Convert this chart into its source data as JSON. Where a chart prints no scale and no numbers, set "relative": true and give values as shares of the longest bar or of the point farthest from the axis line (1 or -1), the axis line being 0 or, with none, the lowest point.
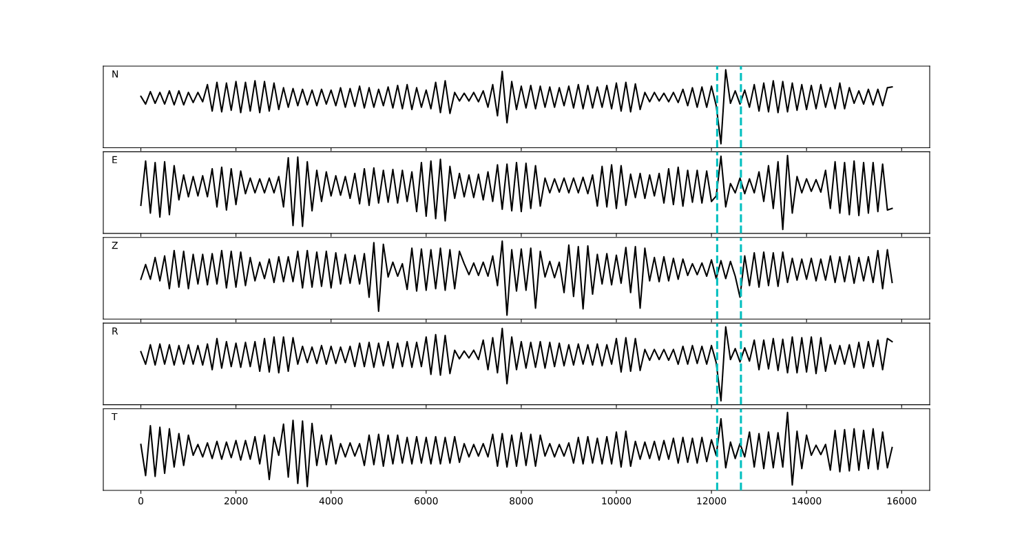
{
  "chart_data": [
    {
      "type": "line",
      "title": "N",
      "relative": true,
      "color": "#000000",
      "xlim": [
        -790,
        16590
      ],
      "xticks": [
        0,
        2000,
        4000,
        6000,
        8000,
        10000,
        12000,
        14000,
        16000
      ],
      "tick_labels": false,
      "ref_lines": [
        {
          "axis": "x",
          "value": 12120,
          "color": "#00bfbf",
          "line_style": "dashed"
        },
        {
          "axis": "x",
          "value": 12620,
          "color": "#00bfbf",
          "line_style": "dashed"
        }
      ],
      "x": [
        0,
        100,
        200,
        300,
        400,
        500,
        600,
        700,
        800,
        900,
        1000,
        1100,
        1200,
        1300,
        1400,
        1500,
        1600,
        1700,
        1800,
        1900,
        2000,
        2100,
        2200,
        2300,
        2400,
        2500,
        2600,
        2700,
        2800,
        2900,
        3000,
        3100,
        3200,
        3300,
        3400,
        3500,
        3600,
        3700,
        3800,
        3900,
        4000,
        4100,
        4200,
        4300,
        4400,
        4500,
        4600,
        4700,
        4800,
        4900,
        5000,
        5100,
        5200,
        5300,
        5400,
        5500,
        5600,
        5700,
        5800,
        5900,
        6000,
        6100,
        6200,
        6300,
        6400,
        6500,
        6600,
        6700,
        6800,
        6900,
        7000,
        7100,
        7200,
        7300,
        7400,
        7500,
        7600,
        7700,
        7800,
        7900,
        8000,
        8100,
        8200,
        8300,
        8400,
        8500,
        8600,
        8700,
        8800,
        8900,
        9000,
        9100,
        9200,
        9300,
        9400,
        9500,
        9600,
        9700,
        9800,
        9900,
        10000,
        10100,
        10200,
        10300,
        10400,
        10500,
        10600,
        10700,
        10800,
        10900,
        11000,
        11100,
        11200,
        11300,
        11400,
        11500,
        11600,
        11700,
        11800,
        11900,
        12000,
        12100,
        12200,
        12300,
        12400,
        12500,
        12600,
        12700,
        12800,
        12900,
        13000,
        13100,
        13200,
        13300,
        13400,
        13500,
        13600,
        13700,
        13800,
        13900,
        14000,
        14100,
        14200,
        14300,
        14400,
        14500,
        14600,
        14700,
        14800,
        14900,
        15000,
        15100,
        15200,
        15300,
        15400,
        15500,
        15600,
        15700,
        15800
      ],
      "values": [
        0.66,
        0.56,
        0.72,
        0.57,
        0.71,
        0.56,
        0.73,
        0.55,
        0.73,
        0.55,
        0.71,
        0.58,
        0.71,
        0.59,
        0.81,
        0.47,
        0.84,
        0.46,
        0.83,
        0.48,
        0.85,
        0.45,
        0.84,
        0.47,
        0.86,
        0.45,
        0.85,
        0.47,
        0.83,
        0.49,
        0.77,
        0.52,
        0.76,
        0.54,
        0.75,
        0.55,
        0.74,
        0.54,
        0.75,
        0.56,
        0.74,
        0.54,
        0.77,
        0.52,
        0.76,
        0.53,
        0.79,
        0.51,
        0.77,
        0.52,
        0.75,
        0.54,
        0.78,
        0.51,
        0.8,
        0.5,
        0.81,
        0.49,
        0.77,
        0.52,
        0.74,
        0.5,
        0.84,
        0.45,
        0.86,
        0.44,
        0.71,
        0.6,
        0.7,
        0.6,
        0.71,
        0.59,
        0.73,
        0.52,
        0.81,
        0.41,
        0.98,
        0.32,
        0.85,
        0.49,
        0.79,
        0.51,
        0.8,
        0.5,
        0.79,
        0.52,
        0.78,
        0.52,
        0.77,
        0.54,
        0.79,
        0.51,
        0.81,
        0.5,
        0.8,
        0.51,
        0.78,
        0.52,
        0.8,
        0.5,
        0.83,
        0.47,
        0.84,
        0.46,
        0.82,
        0.49,
        0.71,
        0.59,
        0.71,
        0.6,
        0.7,
        0.59,
        0.71,
        0.58,
        0.75,
        0.54,
        0.77,
        0.52,
        0.78,
        0.52,
        0.79,
        0.54,
        0.05,
        1.0,
        0.57,
        0.73,
        0.56,
        0.74,
        0.52,
        0.81,
        0.47,
        0.83,
        0.46,
        0.86,
        0.45,
        0.85,
        0.46,
        0.83,
        0.48,
        0.81,
        0.49,
        0.8,
        0.5,
        0.81,
        0.52,
        0.77,
        0.5,
        0.83,
        0.5,
        0.77,
        0.57,
        0.73,
        0.56,
        0.75,
        0.55,
        0.75,
        0.54,
        0.77,
        0.78
      ]
    },
    {
      "type": "line",
      "title": "E",
      "relative": true,
      "color": "#000000",
      "xlim": [
        -790,
        16590
      ],
      "xticks": [
        0,
        2000,
        4000,
        6000,
        8000,
        10000,
        12000,
        14000,
        16000
      ],
      "tick_labels": false,
      "ref_lines": [
        {
          "axis": "x",
          "value": 12120,
          "color": "#00bfbf",
          "line_style": "dashed"
        },
        {
          "axis": "x",
          "value": 12620,
          "color": "#00bfbf",
          "line_style": "dashed"
        }
      ],
      "x": [
        0,
        100,
        200,
        300,
        400,
        500,
        600,
        700,
        800,
        900,
        1000,
        1100,
        1200,
        1300,
        1400,
        1500,
        1600,
        1700,
        1800,
        1900,
        2000,
        2100,
        2200,
        2300,
        2400,
        2500,
        2600,
        2700,
        2800,
        2900,
        3000,
        3100,
        3200,
        3300,
        3400,
        3500,
        3600,
        3700,
        3800,
        3900,
        4000,
        4100,
        4200,
        4300,
        4400,
        4500,
        4600,
        4700,
        4800,
        4900,
        5000,
        5100,
        5200,
        5300,
        5400,
        5500,
        5600,
        5700,
        5800,
        5900,
        6000,
        6100,
        6200,
        6300,
        6400,
        6500,
        6600,
        6700,
        6800,
        6900,
        7000,
        7100,
        7200,
        7300,
        7400,
        7500,
        7600,
        7700,
        7800,
        7900,
        8000,
        8100,
        8200,
        8300,
        8400,
        8500,
        8600,
        8700,
        8800,
        8900,
        9000,
        9100,
        9200,
        9300,
        9400,
        9500,
        9600,
        9700,
        9800,
        9900,
        10000,
        10100,
        10200,
        10300,
        10400,
        10500,
        10600,
        10700,
        10800,
        10900,
        11000,
        11100,
        11200,
        11300,
        11400,
        11500,
        11600,
        11700,
        11800,
        11900,
        12000,
        12100,
        12200,
        12300,
        12400,
        12500,
        12600,
        12700,
        12800,
        12900,
        13000,
        13100,
        13200,
        13300,
        13400,
        13500,
        13600,
        13700,
        13800,
        13900,
        14000,
        14100,
        14200,
        14300,
        14400,
        14500,
        14600,
        14700,
        14800,
        14900,
        15000,
        15100,
        15200,
        15300,
        15400,
        15500,
        15600,
        15700,
        15800
      ],
      "values": [
        0.36,
        0.93,
        0.26,
        0.91,
        0.21,
        0.92,
        0.24,
        0.87,
        0.43,
        0.75,
        0.47,
        0.73,
        0.48,
        0.74,
        0.47,
        0.83,
        0.34,
        0.85,
        0.3,
        0.83,
        0.37,
        0.8,
        0.51,
        0.71,
        0.52,
        0.7,
        0.52,
        0.71,
        0.52,
        0.73,
        0.34,
        0.97,
        0.1,
        0.98,
        0.09,
        0.92,
        0.29,
        0.81,
        0.41,
        0.79,
        0.48,
        0.74,
        0.49,
        0.73,
        0.45,
        0.77,
        0.38,
        0.83,
        0.36,
        0.84,
        0.39,
        0.81,
        0.4,
        0.82,
        0.39,
        0.81,
        0.41,
        0.79,
        0.28,
        0.91,
        0.22,
        0.93,
        0.19,
        0.95,
        0.16,
        0.86,
        0.45,
        0.77,
        0.47,
        0.75,
        0.46,
        0.76,
        0.43,
        0.79,
        0.41,
        0.88,
        0.31,
        0.89,
        0.29,
        0.91,
        0.28,
        0.9,
        0.32,
        0.87,
        0.35,
        0.71,
        0.52,
        0.7,
        0.53,
        0.71,
        0.52,
        0.71,
        0.52,
        0.72,
        0.51,
        0.75,
        0.35,
        0.86,
        0.34,
        0.88,
        0.32,
        0.87,
        0.36,
        0.76,
        0.46,
        0.77,
        0.45,
        0.75,
        0.48,
        0.77,
        0.39,
        0.83,
        0.37,
        0.85,
        0.35,
        0.81,
        0.4,
        0.81,
        0.39,
        0.8,
        0.41,
        0.48,
        0.99,
        0.34,
        0.64,
        0.52,
        0.71,
        0.51,
        0.7,
        0.52,
        0.79,
        0.41,
        0.87,
        0.32,
        0.92,
        0.05,
        1.0,
        0.26,
        0.73,
        0.52,
        0.7,
        0.54,
        0.69,
        0.53,
        0.81,
        0.32,
        0.92,
        0.26,
        0.91,
        0.24,
        0.93,
        0.23,
        0.91,
        0.26,
        0.91,
        0.28,
        0.89,
        0.3,
        0.32
      ]
    },
    {
      "type": "line",
      "title": "Z",
      "relative": true,
      "color": "#000000",
      "xlim": [
        -790,
        16590
      ],
      "xticks": [
        0,
        2000,
        4000,
        6000,
        8000,
        10000,
        12000,
        14000,
        16000
      ],
      "tick_labels": false,
      "ref_lines": [
        {
          "axis": "x",
          "value": 12120,
          "color": "#00bfbf",
          "line_style": "dashed"
        },
        {
          "axis": "x",
          "value": 12620,
          "color": "#00bfbf",
          "line_style": "dashed"
        }
      ],
      "x": [
        0,
        100,
        200,
        300,
        400,
        500,
        600,
        700,
        800,
        900,
        1000,
        1100,
        1200,
        1300,
        1400,
        1500,
        1600,
        1700,
        1800,
        1900,
        2000,
        2100,
        2200,
        2300,
        2400,
        2500,
        2600,
        2700,
        2800,
        2900,
        3000,
        3100,
        3200,
        3300,
        3400,
        3500,
        3600,
        3700,
        3800,
        3900,
        4000,
        4100,
        4200,
        4300,
        4400,
        4500,
        4600,
        4700,
        4800,
        4900,
        5000,
        5100,
        5200,
        5300,
        5400,
        5500,
        5600,
        5700,
        5800,
        5900,
        6000,
        6100,
        6200,
        6300,
        6400,
        6500,
        6600,
        6700,
        6800,
        6900,
        7000,
        7100,
        7200,
        7300,
        7400,
        7500,
        7600,
        7700,
        7800,
        7900,
        8000,
        8100,
        8200,
        8300,
        8400,
        8500,
        8600,
        8700,
        8800,
        8900,
        9000,
        9100,
        9200,
        9300,
        9400,
        9500,
        9600,
        9700,
        9800,
        9900,
        10000,
        10100,
        10200,
        10300,
        10400,
        10500,
        10600,
        10700,
        10800,
        10900,
        11000,
        11100,
        11200,
        11300,
        11400,
        11500,
        11600,
        11700,
        11800,
        11900,
        12000,
        12100,
        12200,
        12300,
        12400,
        12500,
        12600,
        12700,
        12800,
        12900,
        13000,
        13100,
        13200,
        13300,
        13400,
        13500,
        13600,
        13700,
        13800,
        13900,
        14000,
        14100,
        14200,
        14300,
        14400,
        14500,
        14600,
        14700,
        14800,
        14900,
        15000,
        15100,
        15200,
        15300,
        15400,
        15500,
        15600,
        15700,
        15800
      ],
      "values": [
        0.51,
        0.7,
        0.51,
        0.79,
        0.49,
        0.81,
        0.39,
        0.88,
        0.41,
        0.87,
        0.39,
        0.83,
        0.45,
        0.83,
        0.44,
        0.84,
        0.45,
        0.88,
        0.4,
        0.87,
        0.41,
        0.86,
        0.43,
        0.79,
        0.49,
        0.73,
        0.52,
        0.77,
        0.47,
        0.8,
        0.48,
        0.8,
        0.48,
        0.87,
        0.4,
        0.88,
        0.41,
        0.86,
        0.42,
        0.87,
        0.4,
        0.85,
        0.45,
        0.83,
        0.46,
        0.82,
        0.45,
        0.84,
        0.28,
        0.98,
        0.1,
        0.96,
        0.54,
        0.73,
        0.55,
        0.71,
        0.38,
        0.91,
        0.36,
        0.9,
        0.37,
        0.89,
        0.39,
        0.91,
        0.37,
        0.89,
        0.39,
        0.87,
        0.71,
        0.57,
        0.72,
        0.56,
        0.73,
        0.55,
        0.81,
        0.43,
        1.0,
        0.05,
        0.89,
        0.36,
        0.9,
        0.37,
        0.91,
        0.14,
        0.87,
        0.54,
        0.74,
        0.53,
        0.73,
        0.34,
        0.95,
        0.29,
        0.93,
        0.13,
        0.94,
        0.32,
        0.83,
        0.45,
        0.84,
        0.44,
        0.82,
        0.46,
        0.92,
        0.34,
        0.93,
        0.14,
        0.91,
        0.49,
        0.79,
        0.48,
        0.8,
        0.49,
        0.78,
        0.51,
        0.77,
        0.56,
        0.71,
        0.57,
        0.72,
        0.55,
        0.76,
        0.52,
        0.75,
        0.52,
        0.74,
        0.55,
        0.28,
        0.81,
        0.43,
        0.85,
        0.41,
        0.86,
        0.43,
        0.85,
        0.42,
        0.86,
        0.47,
        0.78,
        0.5,
        0.77,
        0.51,
        0.78,
        0.49,
        0.77,
        0.5,
        0.81,
        0.47,
        0.8,
        0.48,
        0.81,
        0.46,
        0.79,
        0.49,
        0.8,
        0.47,
        0.88,
        0.39,
        0.89,
        0.47
      ]
    },
    {
      "type": "line",
      "title": "R",
      "relative": true,
      "color": "#000000",
      "xlim": [
        -790,
        16590
      ],
      "xticks": [
        0,
        2000,
        4000,
        6000,
        8000,
        10000,
        12000,
        14000,
        16000
      ],
      "tick_labels": false,
      "ref_lines": [
        {
          "axis": "x",
          "value": 12120,
          "color": "#00bfbf",
          "line_style": "dashed"
        },
        {
          "axis": "x",
          "value": 12620,
          "color": "#00bfbf",
          "line_style": "dashed"
        }
      ],
      "x": [
        0,
        100,
        200,
        300,
        400,
        500,
        600,
        700,
        800,
        900,
        1000,
        1100,
        1200,
        1300,
        1400,
        1500,
        1600,
        1700,
        1800,
        1900,
        2000,
        2100,
        2200,
        2300,
        2400,
        2500,
        2600,
        2700,
        2800,
        2900,
        3000,
        3100,
        3200,
        3300,
        3400,
        3500,
        3600,
        3700,
        3800,
        3900,
        4000,
        4100,
        4200,
        4300,
        4400,
        4500,
        4600,
        4700,
        4800,
        4900,
        5000,
        5100,
        5200,
        5300,
        5400,
        5500,
        5600,
        5700,
        5800,
        5900,
        6000,
        6100,
        6200,
        6300,
        6400,
        6500,
        6600,
        6700,
        6800,
        6900,
        7000,
        7100,
        7200,
        7300,
        7400,
        7500,
        7600,
        7700,
        7800,
        7900,
        8000,
        8100,
        8200,
        8300,
        8400,
        8500,
        8600,
        8700,
        8800,
        8900,
        9000,
        9100,
        9200,
        9300,
        9400,
        9500,
        9600,
        9700,
        9800,
        9900,
        10000,
        10100,
        10200,
        10300,
        10400,
        10500,
        10600,
        10700,
        10800,
        10900,
        11000,
        11100,
        11200,
        11300,
        11400,
        11500,
        11600,
        11700,
        11800,
        11900,
        12000,
        12100,
        12200,
        12300,
        12400,
        12500,
        12600,
        12700,
        12800,
        12900,
        13000,
        13100,
        13200,
        13300,
        13400,
        13500,
        13600,
        13700,
        13800,
        13900,
        14000,
        14100,
        14200,
        14300,
        14400,
        14500,
        14600,
        14700,
        14800,
        14900,
        15000,
        15100,
        15200,
        15300,
        15400,
        15500,
        15600,
        15700,
        15800
      ],
      "values": [
        0.68,
        0.52,
        0.77,
        0.51,
        0.78,
        0.52,
        0.77,
        0.51,
        0.76,
        0.52,
        0.77,
        0.52,
        0.76,
        0.51,
        0.78,
        0.45,
        0.85,
        0.47,
        0.81,
        0.49,
        0.79,
        0.48,
        0.8,
        0.49,
        0.81,
        0.43,
        0.85,
        0.42,
        0.87,
        0.41,
        0.87,
        0.43,
        0.86,
        0.52,
        0.75,
        0.54,
        0.74,
        0.53,
        0.76,
        0.52,
        0.75,
        0.53,
        0.74,
        0.54,
        0.75,
        0.49,
        0.79,
        0.49,
        0.8,
        0.48,
        0.79,
        0.5,
        0.81,
        0.47,
        0.79,
        0.49,
        0.81,
        0.48,
        0.8,
        0.49,
        0.87,
        0.39,
        0.9,
        0.38,
        0.89,
        0.4,
        0.7,
        0.59,
        0.69,
        0.6,
        0.7,
        0.58,
        0.83,
        0.45,
        0.86,
        0.41,
        0.98,
        0.27,
        0.87,
        0.45,
        0.81,
        0.47,
        0.8,
        0.48,
        0.81,
        0.47,
        0.8,
        0.49,
        0.79,
        0.5,
        0.77,
        0.51,
        0.78,
        0.52,
        0.77,
        0.51,
        0.78,
        0.5,
        0.77,
        0.52,
        0.85,
        0.42,
        0.86,
        0.43,
        0.85,
        0.44,
        0.71,
        0.57,
        0.71,
        0.58,
        0.71,
        0.57,
        0.71,
        0.52,
        0.75,
        0.52,
        0.76,
        0.53,
        0.75,
        0.52,
        0.76,
        0.54,
        0.05,
        1.0,
        0.58,
        0.72,
        0.55,
        0.73,
        0.56,
        0.83,
        0.45,
        0.83,
        0.46,
        0.85,
        0.44,
        0.84,
        0.41,
        0.87,
        0.41,
        0.86,
        0.42,
        0.87,
        0.4,
        0.86,
        0.43,
        0.77,
        0.52,
        0.76,
        0.52,
        0.77,
        0.48,
        0.8,
        0.47,
        0.81,
        0.49,
        0.83,
        0.45,
        0.85,
        0.81
      ]
    },
    {
      "type": "line",
      "title": "T",
      "relative": true,
      "color": "#000000",
      "xlim": [
        -790,
        16590
      ],
      "xticks": [
        0,
        2000,
        4000,
        6000,
        8000,
        10000,
        12000,
        14000,
        16000
      ],
      "tick_labels": "x",
      "ref_lines": [
        {
          "axis": "x",
          "value": 12120,
          "color": "#00bfbf",
          "line_style": "dashed"
        },
        {
          "axis": "x",
          "value": 12620,
          "color": "#00bfbf",
          "line_style": "dashed"
        }
      ],
      "x": [
        0,
        100,
        200,
        300,
        400,
        500,
        600,
        700,
        800,
        900,
        1000,
        1100,
        1200,
        1300,
        1400,
        1500,
        1600,
        1700,
        1800,
        1900,
        2000,
        2100,
        2200,
        2300,
        2400,
        2500,
        2600,
        2700,
        2800,
        2900,
        3000,
        3100,
        3200,
        3300,
        3400,
        3500,
        3600,
        3700,
        3800,
        3900,
        4000,
        4100,
        4200,
        4300,
        4400,
        4500,
        4600,
        4700,
        4800,
        4900,
        5000,
        5100,
        5200,
        5300,
        5400,
        5500,
        5600,
        5700,
        5800,
        5900,
        6000,
        6100,
        6200,
        6300,
        6400,
        6500,
        6600,
        6700,
        6800,
        6900,
        7000,
        7100,
        7200,
        7300,
        7400,
        7500,
        7600,
        7700,
        7800,
        7900,
        8000,
        8100,
        8200,
        8300,
        8400,
        8500,
        8600,
        8700,
        8800,
        8900,
        9000,
        9100,
        9200,
        9300,
        9400,
        9500,
        9600,
        9700,
        9800,
        9900,
        10000,
        10100,
        10200,
        10300,
        10400,
        10500,
        10600,
        10700,
        10800,
        10900,
        11000,
        11100,
        11200,
        11300,
        11400,
        11500,
        11600,
        11700,
        11800,
        11900,
        12000,
        12100,
        12200,
        12300,
        12400,
        12500,
        12600,
        12700,
        12800,
        12900,
        13000,
        13100,
        13200,
        13300,
        13400,
        13500,
        13600,
        13700,
        13800,
        13900,
        14000,
        14100,
        14200,
        14300,
        14400,
        14500,
        14600,
        14700,
        14800,
        14900,
        15000,
        15100,
        15200,
        15300,
        15400,
        15500,
        15600,
        15700,
        15800
      ],
      "values": [
        0.59,
        0.19,
        0.83,
        0.18,
        0.81,
        0.22,
        0.79,
        0.3,
        0.73,
        0.32,
        0.71,
        0.45,
        0.59,
        0.43,
        0.61,
        0.41,
        0.63,
        0.4,
        0.62,
        0.42,
        0.64,
        0.39,
        0.64,
        0.4,
        0.69,
        0.34,
        0.71,
        0.14,
        0.68,
        0.45,
        0.85,
        0.17,
        0.9,
        0.09,
        0.89,
        0.05,
        0.86,
        0.32,
        0.71,
        0.33,
        0.71,
        0.34,
        0.6,
        0.43,
        0.61,
        0.44,
        0.6,
        0.32,
        0.71,
        0.33,
        0.72,
        0.31,
        0.71,
        0.34,
        0.71,
        0.35,
        0.68,
        0.34,
        0.69,
        0.35,
        0.68,
        0.34,
        0.69,
        0.34,
        0.68,
        0.35,
        0.69,
        0.36,
        0.6,
        0.43,
        0.59,
        0.44,
        0.6,
        0.43,
        0.72,
        0.31,
        0.73,
        0.3,
        0.71,
        0.31,
        0.74,
        0.32,
        0.72,
        0.31,
        0.71,
        0.44,
        0.6,
        0.43,
        0.59,
        0.44,
        0.61,
        0.35,
        0.68,
        0.34,
        0.69,
        0.35,
        0.67,
        0.34,
        0.69,
        0.34,
        0.75,
        0.3,
        0.76,
        0.31,
        0.63,
        0.4,
        0.62,
        0.41,
        0.63,
        0.39,
        0.64,
        0.4,
        0.67,
        0.35,
        0.68,
        0.36,
        0.67,
        0.35,
        0.68,
        0.37,
        0.65,
        0.45,
        0.92,
        0.29,
        0.62,
        0.41,
        0.6,
        0.43,
        0.75,
        0.3,
        0.73,
        0.28,
        0.75,
        0.29,
        0.74,
        0.3,
        1.0,
        0.07,
        0.76,
        0.28,
        0.71,
        0.45,
        0.58,
        0.46,
        0.59,
        0.26,
        0.77,
        0.24,
        0.78,
        0.25,
        0.79,
        0.26,
        0.77,
        0.28,
        0.79,
        0.27,
        0.75,
        0.29,
        0.55
      ]
    }
  ]
}
